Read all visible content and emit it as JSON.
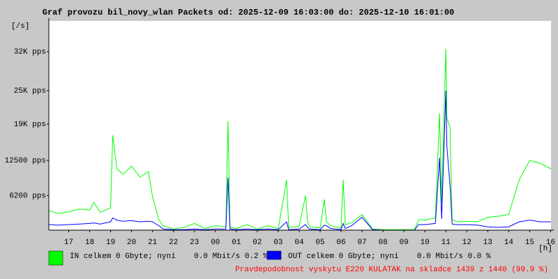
{
  "chart_data": {
    "type": "line",
    "title": "Graf provozu bil_novy_wlan Packets od: 2025-12-09 16:03:00 do: 2025-12-10 16:01:00",
    "y_label": "[/s]",
    "x_label": "[h]",
    "annotation": "Pravdepodobnost vyskytu E220 KULATAK na skladce 1439 z 1440 (99.9 %)",
    "x": [
      16.05,
      16.5,
      17,
      17.5,
      18,
      18.2,
      18.5,
      19,
      19.1,
      19.3,
      19.6,
      20,
      20.4,
      20.8,
      21,
      21.3,
      21.5,
      22,
      22.5,
      23,
      23.5,
      24,
      24.5,
      24.6,
      24.7,
      25,
      25.5,
      26,
      26.5,
      27,
      27.4,
      27.5,
      28,
      28.3,
      28.4,
      28.5,
      29,
      29.2,
      29.3,
      29.5,
      30,
      30.1,
      30.2,
      30.5,
      31,
      31.5,
      32,
      32.5,
      33,
      33.5,
      33.7,
      34,
      34.5,
      34.7,
      34.8,
      35,
      35.05,
      35.2,
      35.3,
      35.5,
      36,
      36.5,
      37,
      37.5,
      38,
      38.5,
      39,
      39.5,
      40.02
    ],
    "xlim": [
      16.05,
      40.02
    ],
    "xticks": [
      17,
      18,
      19,
      20,
      21,
      22,
      23,
      {
        "value": 24,
        "label": "00"
      },
      {
        "value": 25,
        "label": "01"
      },
      {
        "value": 26,
        "label": "02"
      },
      {
        "value": 27,
        "label": "03"
      },
      {
        "value": 28,
        "label": "04"
      },
      {
        "value": 29,
        "label": "05"
      },
      {
        "value": 30,
        "label": "06"
      },
      {
        "value": 31,
        "label": "07"
      },
      {
        "value": 32,
        "label": "08"
      },
      {
        "value": 33,
        "label": "09"
      },
      {
        "value": 34,
        "label": "10"
      },
      {
        "value": 35,
        "label": "11"
      },
      {
        "value": 36,
        "label": "12"
      },
      {
        "value": 37,
        "label": "13"
      },
      {
        "value": 38,
        "label": "14"
      },
      {
        "value": 39,
        "label": "15"
      },
      {
        "value": 40,
        "label": "16"
      }
    ],
    "ylim": [
      0,
      37500
    ],
    "yticks": [
      {
        "value": 6200,
        "label": "6200 pps"
      },
      {
        "value": 12500,
        "label": "12500 pps"
      },
      {
        "value": 19000,
        "label": "19K pps"
      },
      {
        "value": 25000,
        "label": "25K pps"
      },
      {
        "value": 32000,
        "label": "32K pps"
      }
    ],
    "series": [
      {
        "name": "IN celkem 0 Gbyte; nyní    0.0 Mbit/s 0.2 %",
        "color": "#00ff00",
        "values": [
          3500,
          3000,
          3300,
          3800,
          3600,
          5000,
          3200,
          4000,
          17000,
          11000,
          10000,
          11500,
          9500,
          10500,
          6000,
          1900,
          800,
          200,
          500,
          1200,
          300,
          800,
          600,
          19600,
          500,
          300,
          1000,
          200,
          800,
          300,
          9000,
          500,
          700,
          6200,
          1500,
          600,
          400,
          5500,
          1500,
          800,
          400,
          9000,
          1000,
          1300,
          2800,
          200,
          100,
          100,
          100,
          100,
          1900,
          1800,
          2200,
          21000,
          5000,
          32500,
          20000,
          18500,
          2000,
          1500,
          1600,
          1500,
          2300,
          2500,
          2800,
          9000,
          12500,
          12000,
          11000
        ]
      },
      {
        "name": "OUT celkem 0 Gbyte; nyní    0.0 Mbit/s 0.0 %",
        "color": "#0000ff",
        "values": [
          1000,
          900,
          1000,
          1100,
          1200,
          1300,
          1100,
          1500,
          2200,
          1800,
          1600,
          1700,
          1500,
          1600,
          1500,
          800,
          200,
          100,
          100,
          200,
          100,
          200,
          200,
          9400,
          200,
          100,
          200,
          100,
          200,
          100,
          1500,
          100,
          200,
          1000,
          500,
          200,
          100,
          900,
          800,
          300,
          100,
          1200,
          300,
          800,
          2300,
          100,
          0,
          0,
          0,
          0,
          1000,
          1000,
          1200,
          13000,
          2000,
          25000,
          15000,
          8000,
          1100,
          1000,
          1000,
          900,
          600,
          500,
          600,
          1500,
          1800,
          1500,
          1500
        ]
      }
    ]
  }
}
